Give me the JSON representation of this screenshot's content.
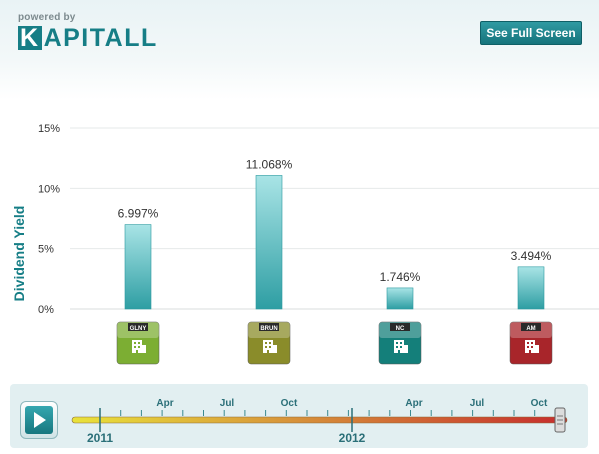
{
  "header": {
    "powered_by": "powered by",
    "logo_first": "K",
    "logo_rest": "APITALL",
    "fullscreen_label": "See Full Screen"
  },
  "colors": {
    "brand": "#167e86",
    "bar_top": "#a9e4e6",
    "bar_bottom": "#2e9ea3"
  },
  "chart_data": {
    "type": "bar",
    "ylabel": "Dividend Yield",
    "ylim": [
      0,
      15
    ],
    "yticks": [
      0,
      5,
      10,
      15
    ],
    "ytick_format": "%",
    "grid": true,
    "categories": [
      "GLNY",
      "BRUN",
      "NC",
      "AM"
    ],
    "values": [
      6.997,
      11.068,
      1.746,
      3.494
    ],
    "data_labels": [
      "6.997%",
      "11.068%",
      "1.746%",
      "3.494%"
    ],
    "category_icons": [
      {
        "icon": "building-icon",
        "color": "#7cae33"
      },
      {
        "icon": "building-icon",
        "color": "#8a8c2a"
      },
      {
        "icon": "building-icon",
        "color": "#147f7a"
      },
      {
        "icon": "building-icon",
        "color": "#a8252a"
      }
    ]
  },
  "timeline": {
    "month_labels": [
      "Apr",
      "Jul",
      "Oct",
      "Apr",
      "Jul",
      "Oct"
    ],
    "year_labels": [
      "2011",
      "2012"
    ]
  }
}
